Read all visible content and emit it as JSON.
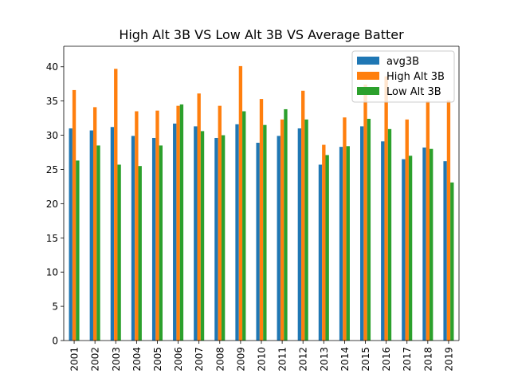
{
  "chart_data": {
    "type": "bar",
    "title": "High Alt 3B VS Low Alt 3B VS Average Batter",
    "xlabel": "",
    "ylabel": "",
    "ylim": [
      0,
      43
    ],
    "yticks": [
      0,
      5,
      10,
      15,
      20,
      25,
      30,
      35,
      40
    ],
    "grid": false,
    "legend_position": "upper right",
    "categories": [
      "2001",
      "2002",
      "2003",
      "2004",
      "2005",
      "2006",
      "2007",
      "2008",
      "2009",
      "2010",
      "2011",
      "2012",
      "2013",
      "2014",
      "2015",
      "2016",
      "2017",
      "2018",
      "2019"
    ],
    "series": [
      {
        "name": "avg3B",
        "color": "#1f77b4",
        "values": [
          31.0,
          30.7,
          31.2,
          29.9,
          29.6,
          31.7,
          31.3,
          29.6,
          31.6,
          28.9,
          29.9,
          31.0,
          25.7,
          28.3,
          31.3,
          29.1,
          26.5,
          28.2,
          26.2
        ]
      },
      {
        "name": "High Alt 3B",
        "color": "#ff7f0e",
        "values": [
          36.6,
          34.1,
          39.7,
          33.5,
          33.6,
          34.3,
          36.1,
          34.3,
          40.1,
          35.3,
          32.3,
          36.5,
          28.6,
          32.6,
          37.4,
          38.6,
          32.3,
          35.0,
          35.1
        ]
      },
      {
        "name": "Low Alt 3B",
        "color": "#2ca02c",
        "values": [
          26.3,
          28.5,
          25.7,
          25.5,
          28.5,
          34.5,
          30.6,
          30.0,
          33.5,
          31.5,
          33.8,
          32.3,
          27.1,
          28.4,
          32.4,
          30.9,
          27.0,
          28.0,
          23.1
        ]
      }
    ]
  }
}
